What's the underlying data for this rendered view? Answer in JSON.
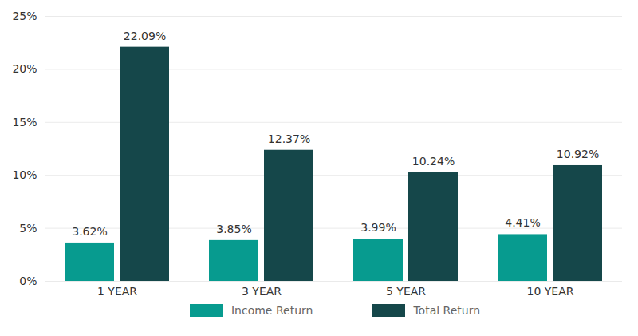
{
  "chart_data": {
    "type": "bar",
    "categories": [
      "1 YEAR",
      "3 YEAR",
      "5 YEAR",
      "10 YEAR"
    ],
    "series": [
      {
        "name": "Income Return",
        "color": "#079b8f",
        "values": [
          3.62,
          3.85,
          3.99,
          4.41
        ],
        "value_labels": [
          "3.62%",
          "3.85%",
          "3.99%",
          "4.41%"
        ]
      },
      {
        "name": "Total Return",
        "color": "#15474a",
        "values": [
          22.09,
          12.37,
          10.24,
          10.92
        ],
        "value_labels": [
          "22.09%",
          "12.37%",
          "10.24%",
          "10.92%"
        ]
      }
    ],
    "ylim": [
      0,
      25
    ],
    "yticks": [
      {
        "value": 0,
        "label": "0%"
      },
      {
        "value": 5,
        "label": "5%"
      },
      {
        "value": 10,
        "label": "10%"
      },
      {
        "value": 15,
        "label": "15%"
      },
      {
        "value": 20,
        "label": "20%"
      },
      {
        "value": 25,
        "label": "25%"
      }
    ],
    "grid": true,
    "data_labels": true,
    "legend": "bottom"
  }
}
